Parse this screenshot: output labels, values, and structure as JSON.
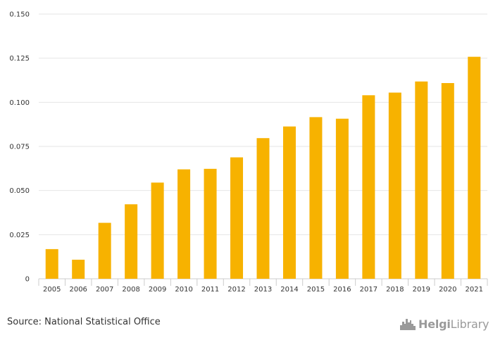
{
  "chart_data": {
    "type": "bar",
    "categories": [
      "2005",
      "2006",
      "2007",
      "2008",
      "2009",
      "2010",
      "2011",
      "2012",
      "2013",
      "2014",
      "2015",
      "2016",
      "2017",
      "2018",
      "2019",
      "2020",
      "2021"
    ],
    "values": [
      0.0168,
      0.0108,
      0.0317,
      0.0422,
      0.0545,
      0.062,
      0.0623,
      0.0688,
      0.0797,
      0.0863,
      0.0916,
      0.0907,
      0.104,
      0.1055,
      0.1118,
      0.1109,
      0.1258
    ],
    "ylim": [
      0,
      0.15
    ],
    "yticks": [
      "0",
      "0.025",
      "0.050",
      "0.075",
      "0.100",
      "0.125",
      "0.150"
    ],
    "ytick_values": [
      0,
      0.025,
      0.05,
      0.075,
      0.1,
      0.125,
      0.15
    ],
    "grid": true,
    "bar_color": "#f7b200"
  },
  "footer": {
    "source": "Source: National Statistical Office",
    "logo_text_bold": "Helgi",
    "logo_text_rest": "Library",
    "logo_icon": "city-skyline-icon"
  }
}
